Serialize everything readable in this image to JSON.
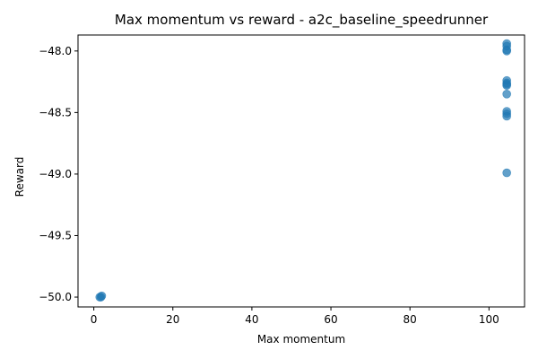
{
  "chart_data": {
    "type": "scatter",
    "title": "Max momentum vs reward - a2c_baseline_speedrunner",
    "xlabel": "Max momentum",
    "ylabel": "Reward",
    "xlim": [
      -4,
      109
    ],
    "ylim": [
      -50.08,
      -47.87
    ],
    "grid": false,
    "x_ticks": [
      {
        "value": 0,
        "label": "0"
      },
      {
        "value": 20,
        "label": "20"
      },
      {
        "value": 40,
        "label": "40"
      },
      {
        "value": 60,
        "label": "60"
      },
      {
        "value": 80,
        "label": "80"
      },
      {
        "value": 100,
        "label": "100"
      }
    ],
    "y_ticks": [
      {
        "value": -50.0,
        "label": "−50.0"
      },
      {
        "value": -49.5,
        "label": "−49.5"
      },
      {
        "value": -49.0,
        "label": "−49.0"
      },
      {
        "value": -48.5,
        "label": "−48.5"
      },
      {
        "value": -48.0,
        "label": "−48.0"
      }
    ],
    "series": [
      {
        "color": "#1f77b4",
        "points": [
          {
            "x": 1.5,
            "y": -50.0
          },
          {
            "x": 1.8,
            "y": -50.0
          },
          {
            "x": 2.0,
            "y": -49.99
          },
          {
            "x": 104.5,
            "y": -47.94
          },
          {
            "x": 104.5,
            "y": -47.96
          },
          {
            "x": 104.5,
            "y": -47.99
          },
          {
            "x": 104.5,
            "y": -48.0
          },
          {
            "x": 104.5,
            "y": -48.24
          },
          {
            "x": 104.5,
            "y": -48.26
          },
          {
            "x": 104.5,
            "y": -48.27
          },
          {
            "x": 104.5,
            "y": -48.28
          },
          {
            "x": 104.5,
            "y": -48.35
          },
          {
            "x": 104.5,
            "y": -48.49
          },
          {
            "x": 104.5,
            "y": -48.51
          },
          {
            "x": 104.5,
            "y": -48.53
          },
          {
            "x": 104.5,
            "y": -48.99
          }
        ]
      }
    ]
  }
}
